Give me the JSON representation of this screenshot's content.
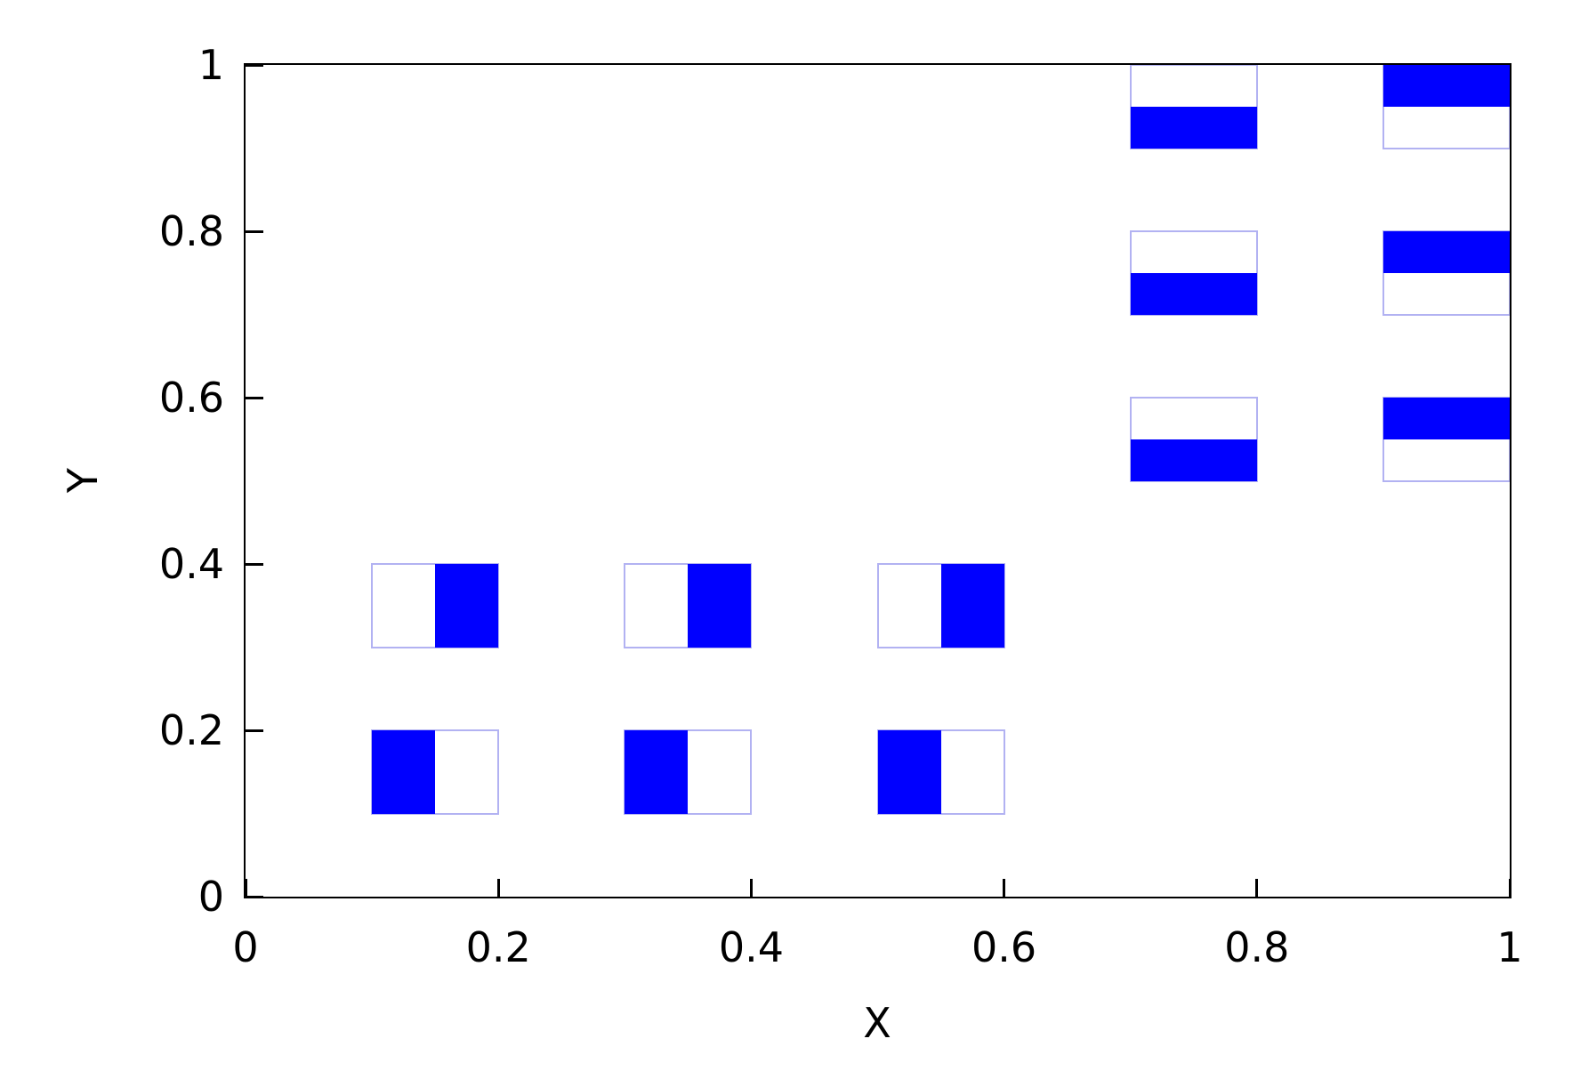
{
  "chart_data": {
    "type": "boxxy",
    "title": "",
    "xlabel": "X",
    "ylabel": "Y",
    "xlim": [
      0,
      1
    ],
    "ylim": [
      0,
      1
    ],
    "grid": false,
    "legend": "none",
    "background_color": "#ffffff",
    "axis_color": "#000000",
    "box_border_color": "#b2b2f2",
    "box_fill_color": "#0000ff",
    "xticks": [
      {
        "value": 0,
        "label": "0"
      },
      {
        "value": 0.2,
        "label": "0.2"
      },
      {
        "value": 0.4,
        "label": "0.4"
      },
      {
        "value": 0.6,
        "label": "0.6"
      },
      {
        "value": 0.8,
        "label": "0.8"
      },
      {
        "value": 1,
        "label": "1"
      }
    ],
    "yticks": [
      {
        "value": 0,
        "label": "0"
      },
      {
        "value": 0.2,
        "label": "0.2"
      },
      {
        "value": 0.4,
        "label": "0.4"
      },
      {
        "value": 0.6,
        "label": "0.6"
      },
      {
        "value": 0.8,
        "label": "0.8"
      },
      {
        "value": 1,
        "label": "1"
      }
    ],
    "boxes": [
      {
        "xlow": 0.1,
        "xhigh": 0.2,
        "ylow": 0.1,
        "yhigh": 0.2,
        "filled_half": "left"
      },
      {
        "xlow": 0.3,
        "xhigh": 0.4,
        "ylow": 0.1,
        "yhigh": 0.2,
        "filled_half": "left"
      },
      {
        "xlow": 0.5,
        "xhigh": 0.6,
        "ylow": 0.1,
        "yhigh": 0.2,
        "filled_half": "left"
      },
      {
        "xlow": 0.1,
        "xhigh": 0.2,
        "ylow": 0.3,
        "yhigh": 0.4,
        "filled_half": "right"
      },
      {
        "xlow": 0.3,
        "xhigh": 0.4,
        "ylow": 0.3,
        "yhigh": 0.4,
        "filled_half": "right"
      },
      {
        "xlow": 0.5,
        "xhigh": 0.6,
        "ylow": 0.3,
        "yhigh": 0.4,
        "filled_half": "right"
      },
      {
        "xlow": 0.7,
        "xhigh": 0.8,
        "ylow": 0.5,
        "yhigh": 0.6,
        "filled_half": "bottom"
      },
      {
        "xlow": 0.7,
        "xhigh": 0.8,
        "ylow": 0.7,
        "yhigh": 0.8,
        "filled_half": "bottom"
      },
      {
        "xlow": 0.7,
        "xhigh": 0.8,
        "ylow": 0.9,
        "yhigh": 1.0,
        "filled_half": "bottom"
      },
      {
        "xlow": 0.9,
        "xhigh": 1.0,
        "ylow": 0.5,
        "yhigh": 0.6,
        "filled_half": "top"
      },
      {
        "xlow": 0.9,
        "xhigh": 1.0,
        "ylow": 0.7,
        "yhigh": 0.8,
        "filled_half": "top"
      },
      {
        "xlow": 0.9,
        "xhigh": 1.0,
        "ylow": 0.9,
        "yhigh": 1.0,
        "filled_half": "top"
      }
    ]
  }
}
